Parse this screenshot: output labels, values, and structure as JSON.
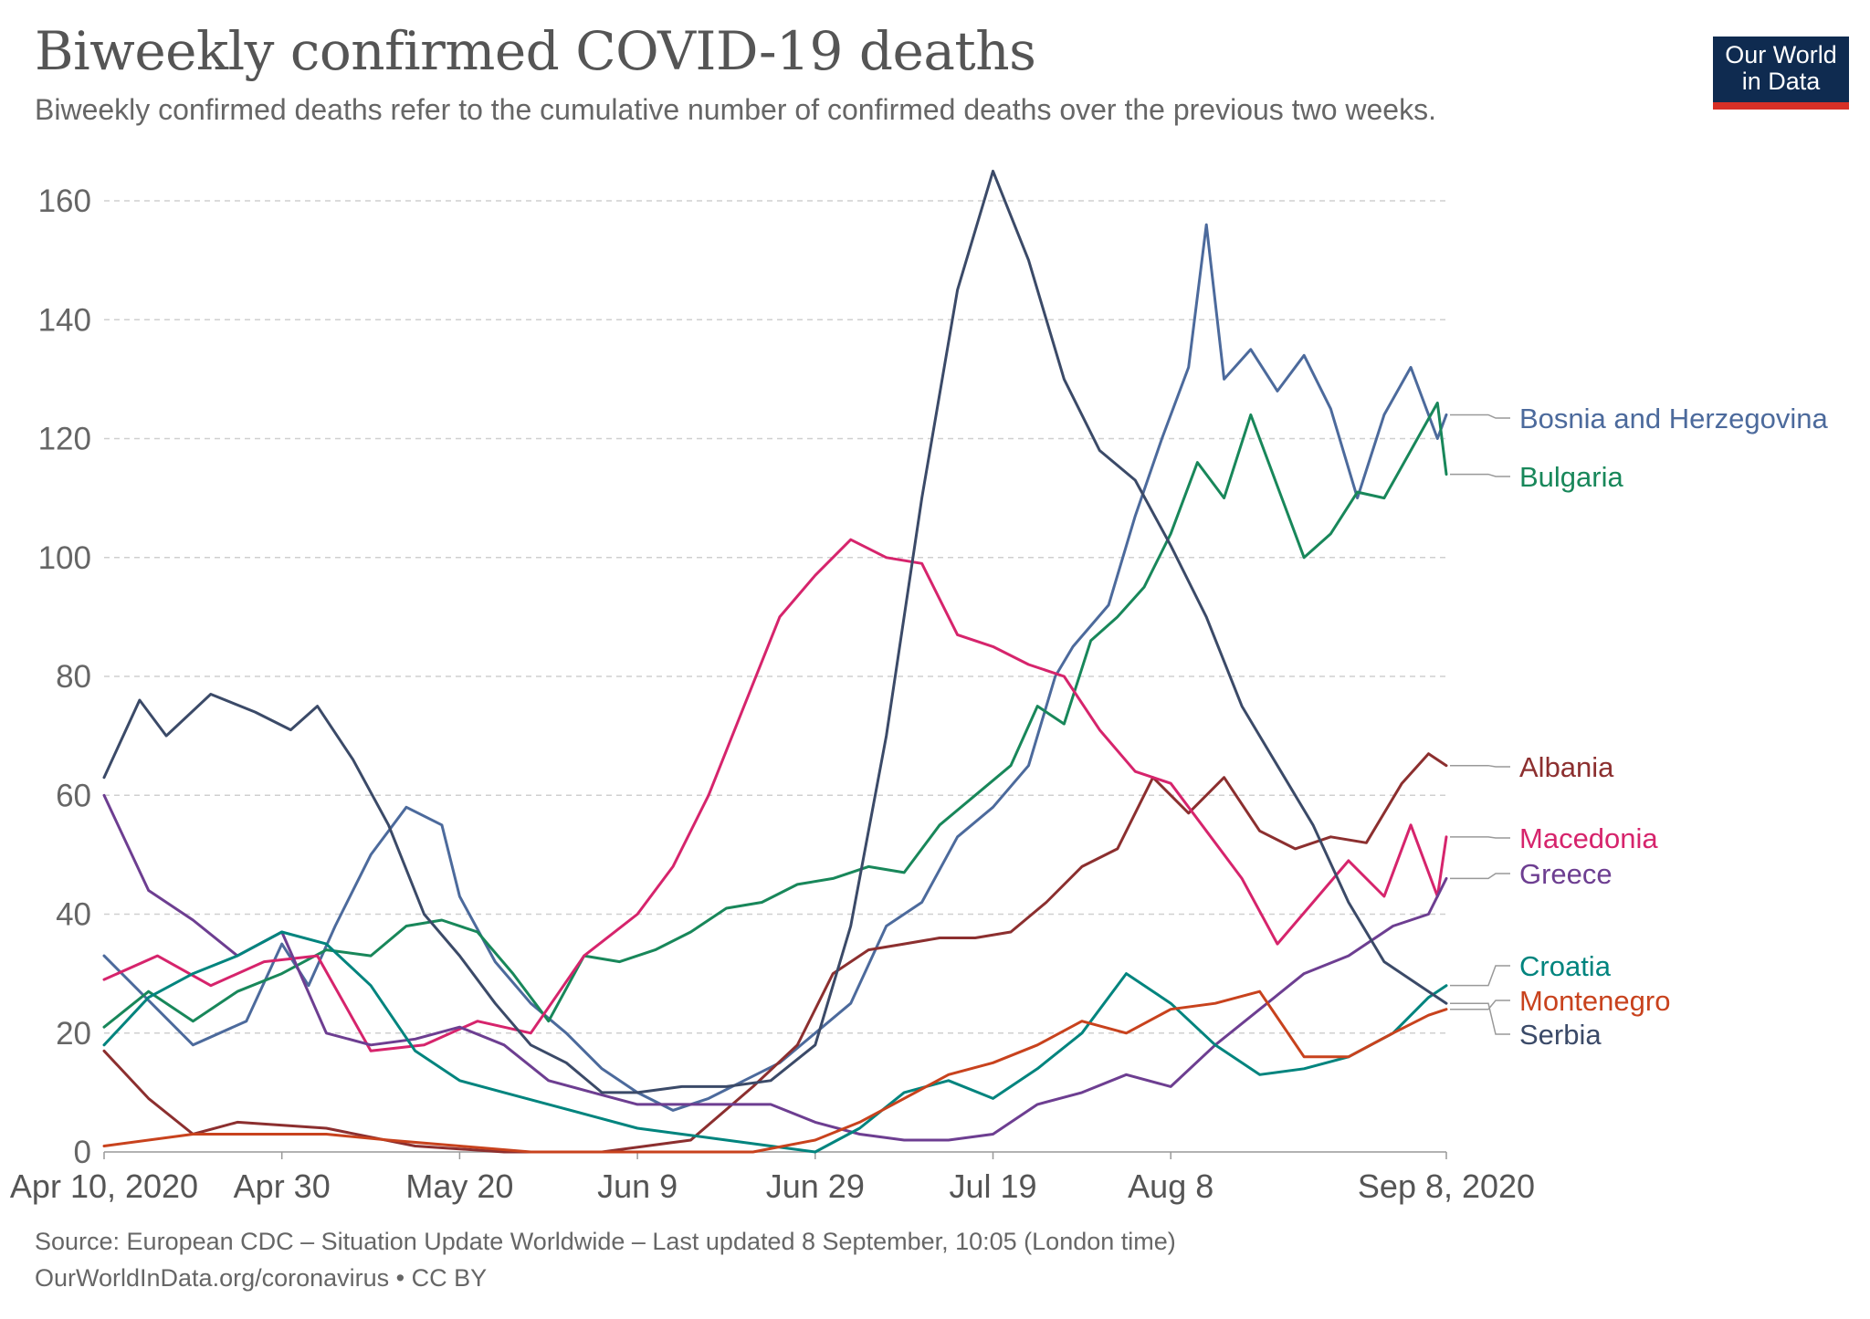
{
  "header": {
    "title": "Biweekly confirmed COVID-19 deaths",
    "subtitle": "Biweekly confirmed deaths refer to the cumulative number of confirmed deaths over the previous two weeks.",
    "logo_line1": "Our World",
    "logo_line2": "in Data"
  },
  "footer": {
    "source": "Source: European CDC – Situation Update Worldwide – Last updated 8 September, 10:05 (London time)",
    "credit": "OurWorldInData.org/coronavirus • CC BY"
  },
  "chart_data": {
    "type": "line",
    "x_start": "2020-04-10",
    "x_end": "2020-09-08",
    "x_tick_labels": [
      "Apr 10, 2020",
      "Apr 30",
      "May 20",
      "Jun 9",
      "Jun 29",
      "Jul 19",
      "Aug 8",
      "Sep 8, 2020"
    ],
    "x_tick_dates": [
      "2020-04-10",
      "2020-04-30",
      "2020-05-20",
      "2020-06-09",
      "2020-06-29",
      "2020-07-19",
      "2020-08-08",
      "2020-09-08"
    ],
    "ylim": [
      0,
      160
    ],
    "y_ticks": [
      0,
      20,
      40,
      60,
      80,
      100,
      120,
      140,
      160
    ],
    "grid": "horizontal dashed",
    "legend": "right, labels at line ends",
    "series": [
      {
        "name": "Bosnia and Herzegovina",
        "color": "#4c6a9c",
        "x": [
          "2020-04-10",
          "2020-04-20",
          "2020-04-26",
          "2020-04-30",
          "2020-05-03",
          "2020-05-06",
          "2020-05-10",
          "2020-05-14",
          "2020-05-18",
          "2020-05-20",
          "2020-05-24",
          "2020-05-28",
          "2020-06-01",
          "2020-06-05",
          "2020-06-09",
          "2020-06-13",
          "2020-06-17",
          "2020-06-21",
          "2020-06-25",
          "2020-06-29",
          "2020-07-03",
          "2020-07-07",
          "2020-07-11",
          "2020-07-15",
          "2020-07-19",
          "2020-07-23",
          "2020-07-26",
          "2020-07-28",
          "2020-08-01",
          "2020-08-04",
          "2020-08-07",
          "2020-08-10",
          "2020-08-12",
          "2020-08-14",
          "2020-08-17",
          "2020-08-20",
          "2020-08-23",
          "2020-08-26",
          "2020-08-29",
          "2020-09-01",
          "2020-09-04",
          "2020-09-07",
          "2020-09-08"
        ],
        "y": [
          33,
          18,
          22,
          35,
          28,
          38,
          50,
          58,
          55,
          43,
          32,
          25,
          20,
          14,
          10,
          7,
          9,
          12,
          15,
          20,
          25,
          38,
          42,
          53,
          58,
          65,
          80,
          85,
          92,
          107,
          120,
          132,
          156,
          130,
          135,
          128,
          134,
          125,
          110,
          124,
          132,
          120,
          124
        ]
      },
      {
        "name": "Bulgaria",
        "color": "#18875a",
        "x": [
          "2020-04-10",
          "2020-04-15",
          "2020-04-20",
          "2020-04-25",
          "2020-04-30",
          "2020-05-05",
          "2020-05-10",
          "2020-05-14",
          "2020-05-18",
          "2020-05-22",
          "2020-05-26",
          "2020-05-30",
          "2020-06-03",
          "2020-06-07",
          "2020-06-11",
          "2020-06-15",
          "2020-06-19",
          "2020-06-23",
          "2020-06-27",
          "2020-07-01",
          "2020-07-05",
          "2020-07-09",
          "2020-07-13",
          "2020-07-17",
          "2020-07-21",
          "2020-07-24",
          "2020-07-27",
          "2020-07-30",
          "2020-08-02",
          "2020-08-05",
          "2020-08-08",
          "2020-08-11",
          "2020-08-14",
          "2020-08-17",
          "2020-08-20",
          "2020-08-23",
          "2020-08-26",
          "2020-08-29",
          "2020-09-01",
          "2020-09-04",
          "2020-09-07",
          "2020-09-08"
        ],
        "y": [
          21,
          27,
          22,
          27,
          30,
          34,
          33,
          38,
          39,
          37,
          30,
          22,
          33,
          32,
          34,
          37,
          41,
          42,
          45,
          46,
          48,
          47,
          55,
          60,
          65,
          75,
          72,
          86,
          90,
          95,
          104,
          116,
          110,
          124,
          112,
          100,
          104,
          111,
          110,
          118,
          126,
          114
        ]
      },
      {
        "name": "Albania",
        "color": "#8c2f2f",
        "x": [
          "2020-04-10",
          "2020-04-15",
          "2020-04-20",
          "2020-04-25",
          "2020-05-05",
          "2020-05-15",
          "2020-05-25",
          "2020-06-05",
          "2020-06-15",
          "2020-06-22",
          "2020-06-27",
          "2020-07-01",
          "2020-07-05",
          "2020-07-09",
          "2020-07-13",
          "2020-07-17",
          "2020-07-21",
          "2020-07-25",
          "2020-07-29",
          "2020-08-02",
          "2020-08-06",
          "2020-08-10",
          "2020-08-14",
          "2020-08-18",
          "2020-08-22",
          "2020-08-26",
          "2020-08-30",
          "2020-09-03",
          "2020-09-06",
          "2020-09-08"
        ],
        "y": [
          17,
          9,
          3,
          5,
          4,
          1,
          0,
          0,
          2,
          11,
          18,
          30,
          34,
          35,
          36,
          36,
          37,
          42,
          48,
          51,
          63,
          57,
          63,
          54,
          51,
          53,
          52,
          62,
          67,
          65
        ]
      },
      {
        "name": "Macedonia",
        "color": "#d6246c",
        "x": [
          "2020-04-10",
          "2020-04-16",
          "2020-04-22",
          "2020-04-28",
          "2020-05-04",
          "2020-05-10",
          "2020-05-16",
          "2020-05-22",
          "2020-05-28",
          "2020-06-03",
          "2020-06-09",
          "2020-06-13",
          "2020-06-17",
          "2020-06-21",
          "2020-06-25",
          "2020-06-29",
          "2020-07-03",
          "2020-07-07",
          "2020-07-11",
          "2020-07-15",
          "2020-07-19",
          "2020-07-23",
          "2020-07-27",
          "2020-07-31",
          "2020-08-04",
          "2020-08-08",
          "2020-08-12",
          "2020-08-16",
          "2020-08-20",
          "2020-08-24",
          "2020-08-28",
          "2020-09-01",
          "2020-09-04",
          "2020-09-07",
          "2020-09-08"
        ],
        "y": [
          29,
          33,
          28,
          32,
          33,
          17,
          18,
          22,
          20,
          33,
          40,
          48,
          60,
          75,
          90,
          97,
          103,
          100,
          99,
          87,
          85,
          82,
          80,
          71,
          64,
          62,
          54,
          46,
          35,
          42,
          49,
          43,
          55,
          43,
          53
        ]
      },
      {
        "name": "Greece",
        "color": "#6d3e91",
        "x": [
          "2020-04-10",
          "2020-04-15",
          "2020-04-20",
          "2020-04-25",
          "2020-04-30",
          "2020-05-05",
          "2020-05-10",
          "2020-05-15",
          "2020-05-20",
          "2020-05-25",
          "2020-05-30",
          "2020-06-04",
          "2020-06-09",
          "2020-06-14",
          "2020-06-19",
          "2020-06-24",
          "2020-06-29",
          "2020-07-04",
          "2020-07-09",
          "2020-07-14",
          "2020-07-19",
          "2020-07-24",
          "2020-07-29",
          "2020-08-03",
          "2020-08-08",
          "2020-08-13",
          "2020-08-18",
          "2020-08-23",
          "2020-08-28",
          "2020-09-02",
          "2020-09-06",
          "2020-09-08"
        ],
        "y": [
          60,
          44,
          39,
          33,
          37,
          20,
          18,
          19,
          21,
          18,
          12,
          10,
          8,
          8,
          8,
          8,
          5,
          3,
          2,
          2,
          3,
          8,
          10,
          13,
          11,
          18,
          24,
          30,
          33,
          38,
          40,
          46
        ]
      },
      {
        "name": "Croatia",
        "color": "#00847e",
        "x": [
          "2020-04-10",
          "2020-04-15",
          "2020-04-20",
          "2020-04-25",
          "2020-04-30",
          "2020-05-05",
          "2020-05-10",
          "2020-05-15",
          "2020-05-20",
          "2020-05-25",
          "2020-05-30",
          "2020-06-04",
          "2020-06-09",
          "2020-06-14",
          "2020-06-19",
          "2020-06-24",
          "2020-06-29",
          "2020-07-04",
          "2020-07-09",
          "2020-07-14",
          "2020-07-19",
          "2020-07-24",
          "2020-07-29",
          "2020-08-03",
          "2020-08-08",
          "2020-08-13",
          "2020-08-18",
          "2020-08-23",
          "2020-08-28",
          "2020-09-02",
          "2020-09-06",
          "2020-09-08"
        ],
        "y": [
          18,
          26,
          30,
          33,
          37,
          35,
          28,
          17,
          12,
          10,
          8,
          6,
          4,
          3,
          2,
          1,
          0,
          4,
          10,
          12,
          9,
          14,
          20,
          30,
          25,
          18,
          13,
          14,
          16,
          20,
          26,
          28
        ]
      },
      {
        "name": "Montenegro",
        "color": "#c8421d",
        "x": [
          "2020-04-10",
          "2020-04-20",
          "2020-04-30",
          "2020-05-05",
          "2020-05-12",
          "2020-05-20",
          "2020-05-28",
          "2020-06-05",
          "2020-06-15",
          "2020-06-22",
          "2020-06-29",
          "2020-07-04",
          "2020-07-09",
          "2020-07-14",
          "2020-07-19",
          "2020-07-24",
          "2020-07-29",
          "2020-08-03",
          "2020-08-08",
          "2020-08-13",
          "2020-08-18",
          "2020-08-23",
          "2020-08-28",
          "2020-09-02",
          "2020-09-06",
          "2020-09-08"
        ],
        "y": [
          1,
          3,
          3,
          3,
          2,
          1,
          0,
          0,
          0,
          0,
          2,
          5,
          9,
          13,
          15,
          18,
          22,
          20,
          24,
          25,
          27,
          16,
          16,
          20,
          23,
          24
        ]
      },
      {
        "name": "Serbia",
        "color": "#3b4a68",
        "x": [
          "2020-04-10",
          "2020-04-14",
          "2020-04-17",
          "2020-04-22",
          "2020-04-27",
          "2020-05-01",
          "2020-05-04",
          "2020-05-08",
          "2020-05-12",
          "2020-05-16",
          "2020-05-20",
          "2020-05-24",
          "2020-05-28",
          "2020-06-01",
          "2020-06-05",
          "2020-06-09",
          "2020-06-14",
          "2020-06-19",
          "2020-06-24",
          "2020-06-29",
          "2020-07-03",
          "2020-07-07",
          "2020-07-11",
          "2020-07-15",
          "2020-07-19",
          "2020-07-23",
          "2020-07-27",
          "2020-07-31",
          "2020-08-04",
          "2020-08-08",
          "2020-08-12",
          "2020-08-16",
          "2020-08-20",
          "2020-08-24",
          "2020-08-28",
          "2020-09-01",
          "2020-09-05",
          "2020-09-08"
        ],
        "y": [
          63,
          76,
          70,
          77,
          74,
          71,
          75,
          66,
          55,
          40,
          33,
          25,
          18,
          15,
          10,
          10,
          11,
          11,
          12,
          18,
          38,
          70,
          110,
          145,
          165,
          150,
          130,
          118,
          113,
          102,
          90,
          75,
          65,
          55,
          42,
          32,
          28,
          25
        ]
      }
    ]
  }
}
